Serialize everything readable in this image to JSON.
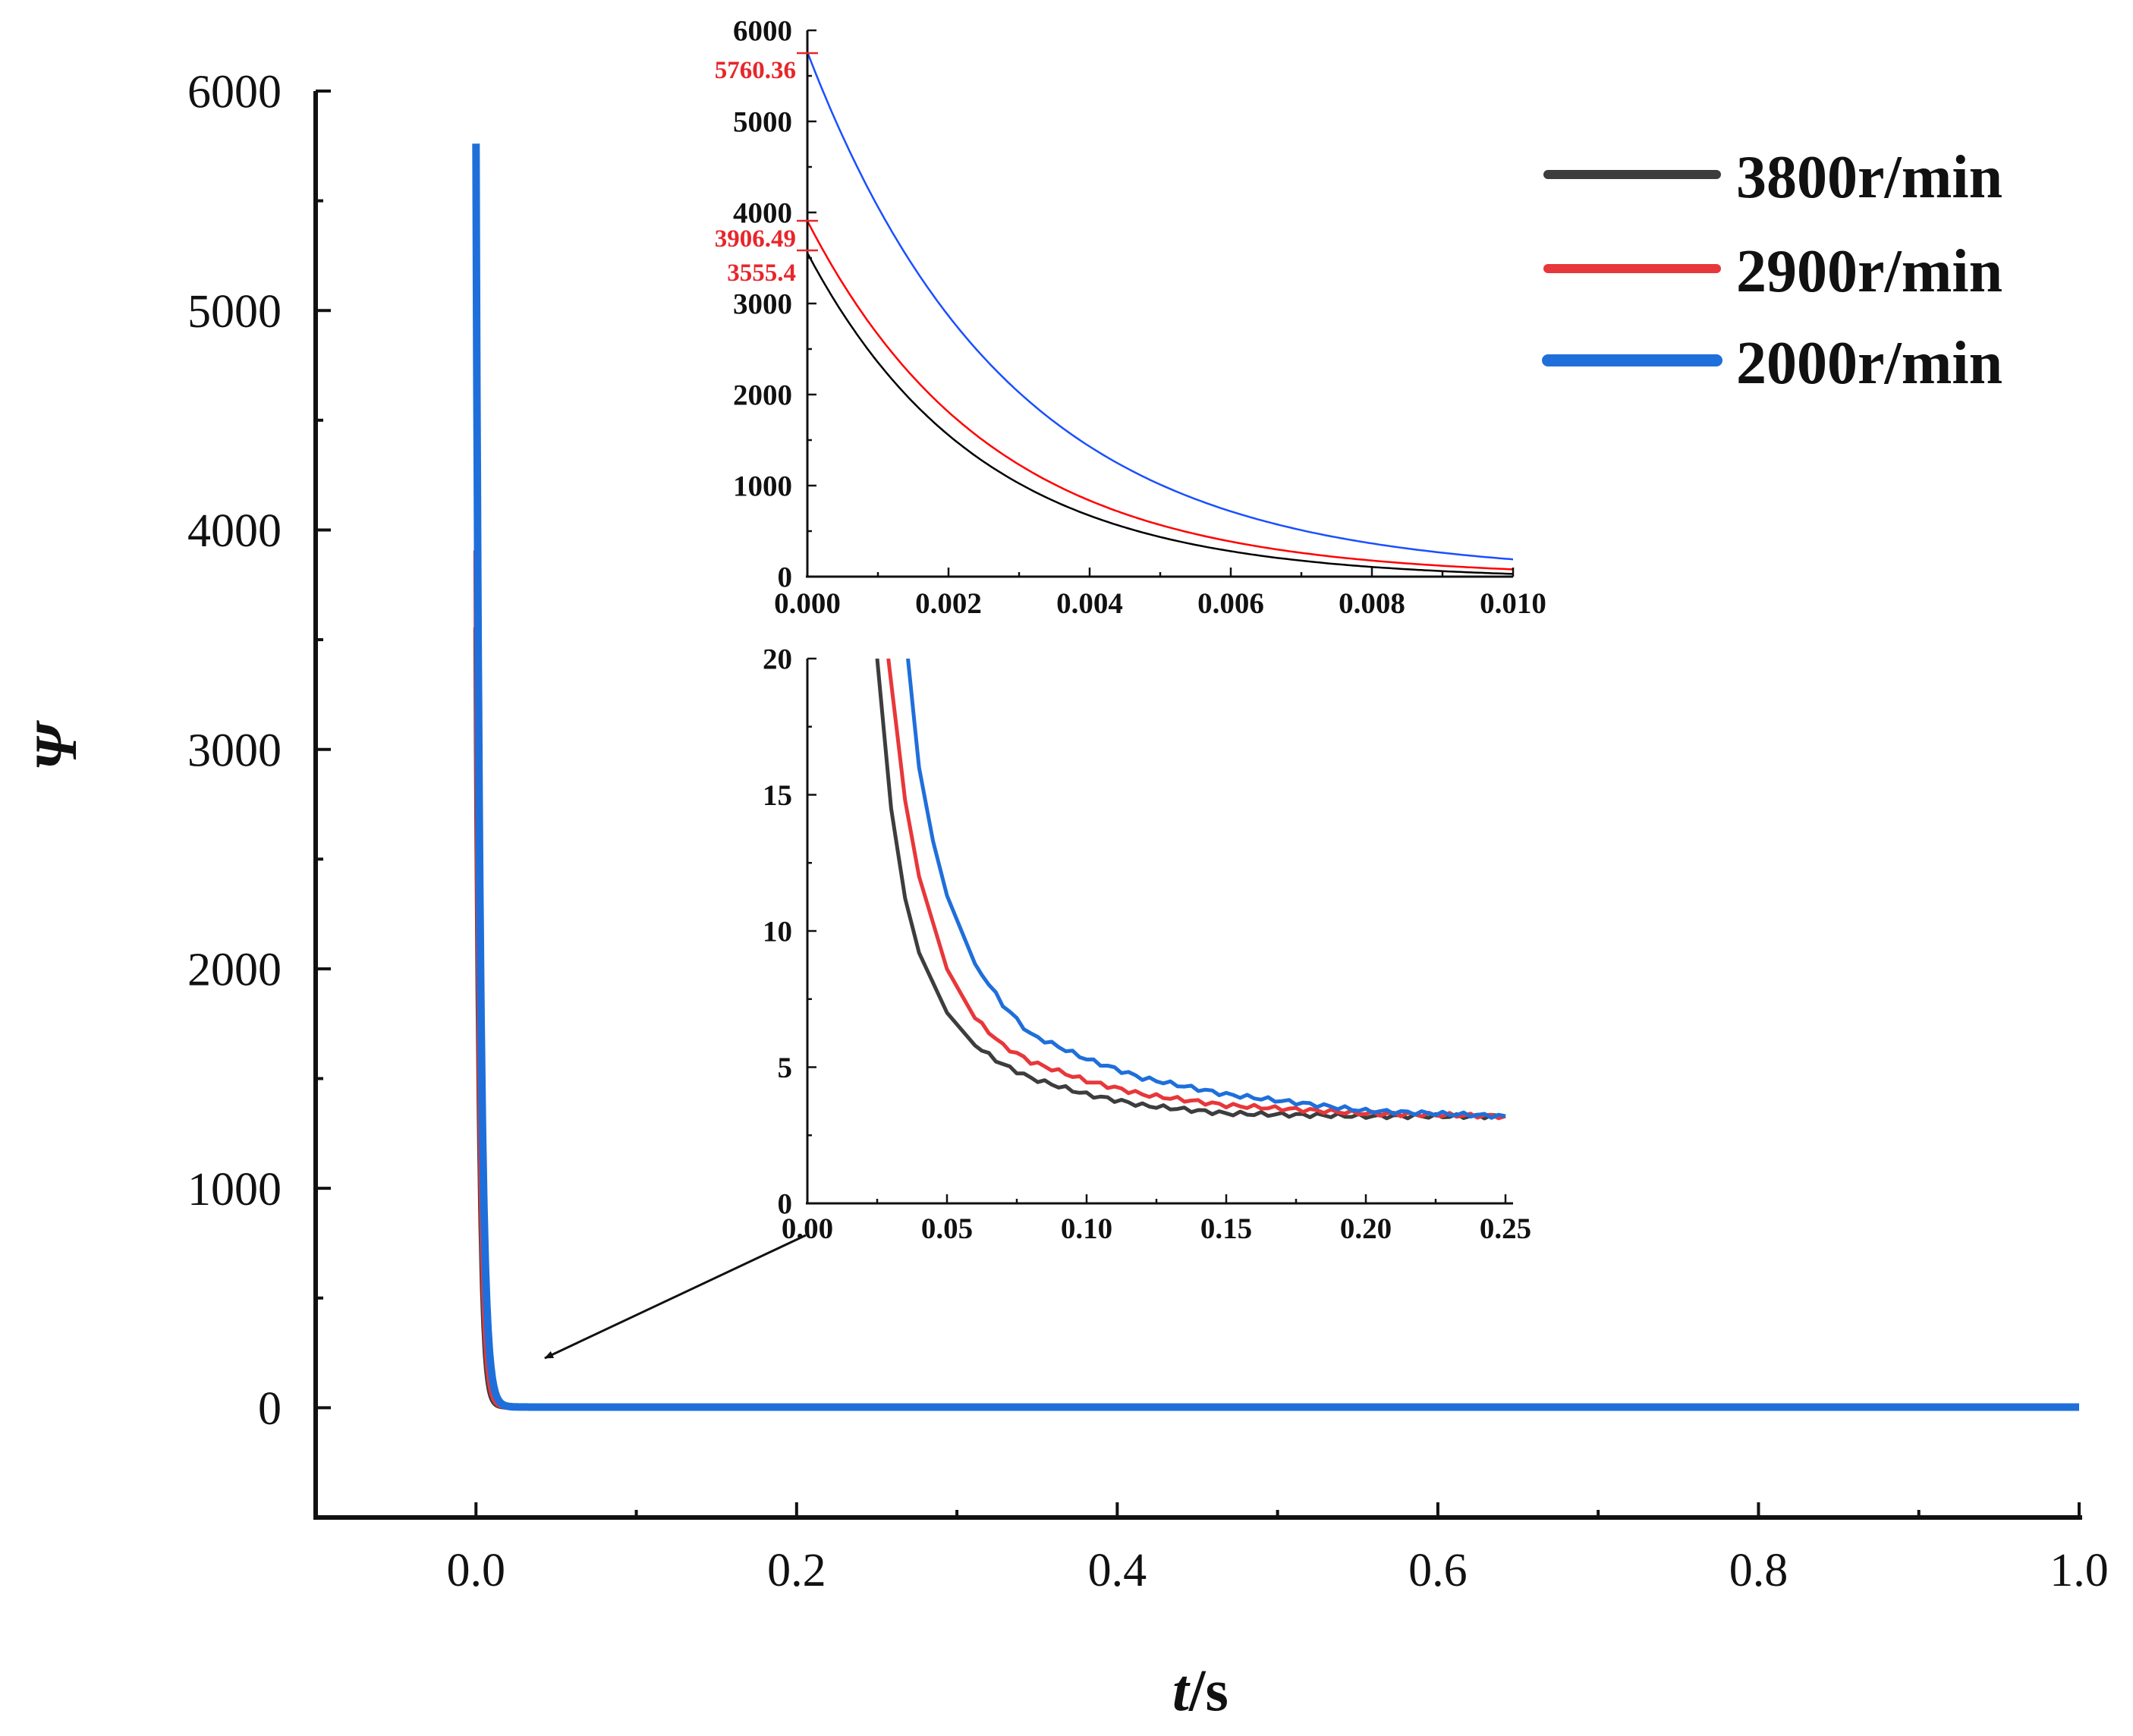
{
  "colors": {
    "3800": "#3d3d3d",
    "2900": "#e8373a",
    "2000": "#1f6fdb",
    "inset_3800": "#000000",
    "inset_2900": "#ff0000",
    "inset_2000": "#1a4fff",
    "annotation": "#e8262a"
  },
  "chart_data": [
    {
      "id": "main",
      "type": "line",
      "title": "",
      "xlabel_italic": "t",
      "xlabel_unit": "/s",
      "ylabel": "Ψ",
      "xlim": [
        -0.1,
        1.0
      ],
      "ylim": [
        -500,
        6000
      ],
      "xticks": [
        "0.0",
        "0.2",
        "0.4",
        "0.6",
        "0.8",
        "1.0"
      ],
      "xtick_values": [
        0.0,
        0.2,
        0.4,
        0.6,
        0.8,
        1.0
      ],
      "yticks": [
        "0",
        "1000",
        "2000",
        "3000",
        "4000",
        "5000",
        "6000"
      ],
      "ytick_values": [
        0,
        1000,
        2000,
        3000,
        4000,
        5000,
        6000
      ],
      "legend_position": "top-right",
      "series": [
        {
          "name": "3800r/min",
          "color": "#3d3d3d",
          "initial": 3555.4,
          "tail": 3.2
        },
        {
          "name": "2900r/min",
          "color": "#e8373a",
          "initial": 3906.49,
          "tail": 3.2
        },
        {
          "name": "2000r/min",
          "color": "#1f6fdb",
          "initial": 5760.36,
          "tail": 3.2
        }
      ],
      "annotation_arrow": "from lower inset origin to main curve near t≈0.04"
    },
    {
      "id": "inset-top",
      "type": "line",
      "xlim": [
        0.0,
        0.01
      ],
      "ylim": [
        0,
        6000
      ],
      "xticks": [
        "0.000",
        "0.002",
        "0.004",
        "0.006",
        "0.008",
        "0.010"
      ],
      "xtick_values": [
        0.0,
        0.002,
        0.004,
        0.006,
        0.008,
        0.01
      ],
      "yticks": [
        "0",
        "1000",
        "2000",
        "3000",
        "4000",
        "5000",
        "6000"
      ],
      "ytick_values": [
        0,
        1000,
        2000,
        3000,
        4000,
        5000,
        6000
      ],
      "annotations": [
        "5760.36",
        "3906.49",
        "3555.4"
      ],
      "series": [
        {
          "name": "3800r/min",
          "initial": 3555.4,
          "end": 30
        },
        {
          "name": "2900r/min",
          "initial": 3906.49,
          "end": 80
        },
        {
          "name": "2000r/min",
          "initial": 5760.36,
          "end": 190
        }
      ]
    },
    {
      "id": "inset-bottom",
      "type": "line",
      "xlim": [
        0.0,
        0.25
      ],
      "ylim": [
        0,
        20
      ],
      "xticks": [
        "0.00",
        "0.05",
        "0.10",
        "0.15",
        "0.20",
        "0.25"
      ],
      "xtick_values": [
        0.0,
        0.05,
        0.1,
        0.15,
        0.2,
        0.25
      ],
      "yticks": [
        "0",
        "5",
        "10",
        "15",
        "20"
      ],
      "ytick_values": [
        0,
        5,
        10,
        15,
        20
      ],
      "series": [
        {
          "name": "3800r/min",
          "x": [
            0.025,
            0.03,
            0.035,
            0.04,
            0.05,
            0.06,
            0.07,
            0.08,
            0.1,
            0.12,
            0.15,
            0.2,
            0.25
          ],
          "y": [
            20,
            14.5,
            11.2,
            9.2,
            7.0,
            5.8,
            5.1,
            4.6,
            4.0,
            3.6,
            3.3,
            3.2,
            3.2
          ]
        },
        {
          "name": "2900r/min",
          "x": [
            0.029,
            0.035,
            0.04,
            0.05,
            0.06,
            0.07,
            0.08,
            0.1,
            0.12,
            0.15,
            0.2,
            0.25
          ],
          "y": [
            20,
            14.8,
            12.0,
            8.6,
            6.8,
            5.8,
            5.2,
            4.5,
            4.0,
            3.6,
            3.3,
            3.2
          ]
        },
        {
          "name": "2000r/min",
          "x": [
            0.036,
            0.04,
            0.045,
            0.05,
            0.06,
            0.07,
            0.08,
            0.1,
            0.12,
            0.15,
            0.2,
            0.25
          ],
          "y": [
            20,
            16.0,
            13.3,
            11.3,
            8.8,
            7.3,
            6.2,
            5.3,
            4.6,
            4.0,
            3.4,
            3.2
          ]
        }
      ]
    }
  ]
}
